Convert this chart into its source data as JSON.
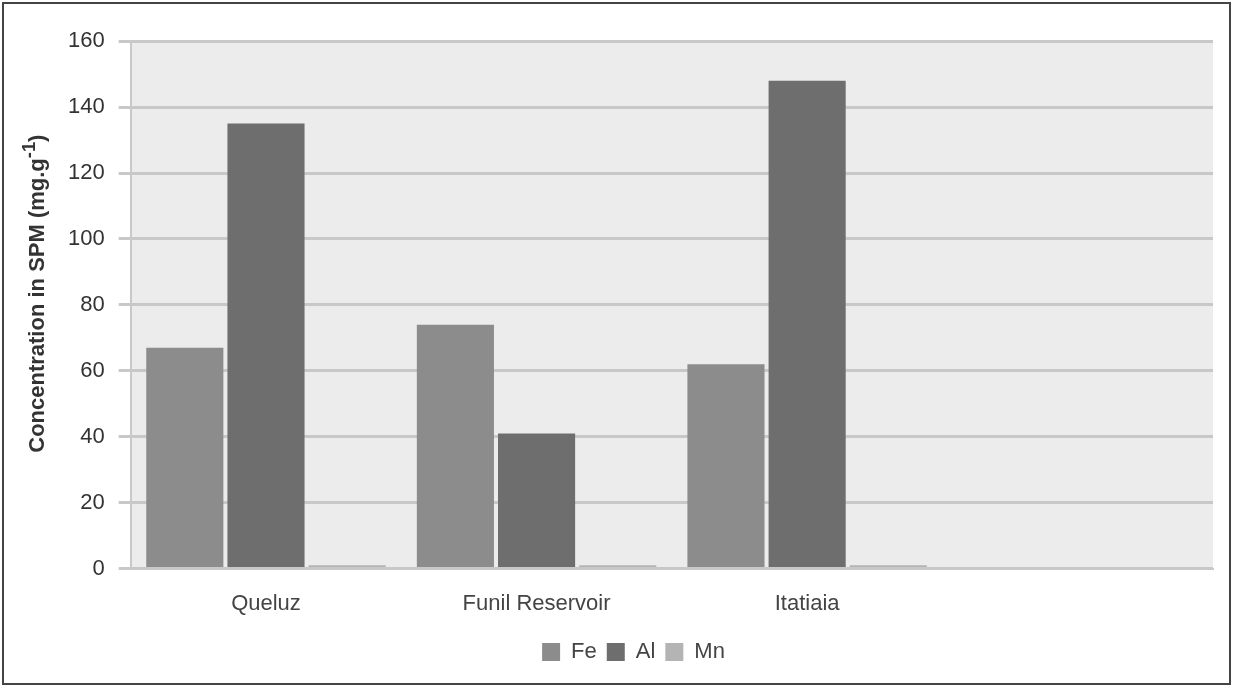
{
  "chart_data": {
    "type": "bar",
    "ylabel": "Concentration in SPM (mg.g$^{-1}$)",
    "categories": [
      "Queluz",
      "Funil Reservoir",
      "Itatiaia",
      null
    ],
    "series": [
      {
        "name": "Fe",
        "color": "#8c8c8c",
        "values": [
          67,
          74,
          62,
          null
        ]
      },
      {
        "name": "Al",
        "color": "#6e6e6e",
        "values": [
          135,
          41,
          148,
          null
        ]
      },
      {
        "name": "Mn",
        "color": "#b4b4b4",
        "values": [
          1,
          1,
          1,
          null
        ]
      }
    ],
    "ylim": [
      0,
      160
    ],
    "yticks": [
      0,
      20,
      40,
      60,
      80,
      100,
      120,
      140,
      160
    ],
    "grid": "y",
    "legend": "bottom"
  }
}
